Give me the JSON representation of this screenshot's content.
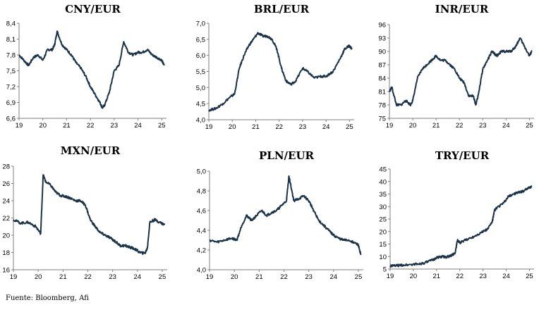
{
  "source": "Fuente: Bloomberg, Afi",
  "colors": {
    "line": "#1a3348",
    "axis": "#7f7f7f"
  },
  "x_ticks": [
    "19",
    "20",
    "21",
    "22",
    "23",
    "24",
    "25"
  ],
  "chart_data": [
    {
      "type": "line",
      "title": "CNY/EUR",
      "ylim": [
        6.6,
        8.4
      ],
      "yticks": [
        "6,6",
        "6,9",
        "7,2",
        "7,5",
        "7,8",
        "8,1",
        "8,4"
      ],
      "x": [
        19.0,
        19.2,
        19.4,
        19.6,
        19.8,
        20.0,
        20.2,
        20.4,
        20.5,
        20.6,
        20.8,
        21.0,
        21.2,
        21.4,
        21.6,
        21.8,
        22.0,
        22.2,
        22.4,
        22.5,
        22.6,
        22.8,
        23.0,
        23.2,
        23.4,
        23.6,
        23.8,
        24.0,
        24.2,
        24.4,
        24.6,
        24.8,
        25.0,
        25.1
      ],
      "values": [
        7.8,
        7.7,
        7.6,
        7.75,
        7.8,
        7.7,
        7.9,
        7.9,
        8.0,
        8.25,
        8.0,
        7.9,
        7.8,
        7.65,
        7.55,
        7.4,
        7.2,
        7.05,
        6.9,
        6.8,
        6.85,
        7.1,
        7.5,
        7.6,
        8.05,
        7.85,
        7.8,
        7.85,
        7.85,
        7.9,
        7.8,
        7.75,
        7.7,
        7.6
      ]
    },
    {
      "type": "line",
      "title": "BRL/EUR",
      "ylim": [
        4.0,
        7.0
      ],
      "yticks": [
        "4,0",
        "4,5",
        "5,0",
        "5,5",
        "6,0",
        "6,5",
        "7,0"
      ],
      "x": [
        19.0,
        19.3,
        19.6,
        19.9,
        20.1,
        20.3,
        20.5,
        20.7,
        20.9,
        21.1,
        21.3,
        21.5,
        21.7,
        21.9,
        22.1,
        22.3,
        22.5,
        22.7,
        23.0,
        23.2,
        23.5,
        23.8,
        24.0,
        24.3,
        24.6,
        24.8,
        25.0,
        25.1
      ],
      "values": [
        4.3,
        4.35,
        4.5,
        4.7,
        4.8,
        5.6,
        6.0,
        6.3,
        6.5,
        6.7,
        6.6,
        6.6,
        6.5,
        6.2,
        5.6,
        5.2,
        5.1,
        5.2,
        5.6,
        5.5,
        5.3,
        5.35,
        5.35,
        5.5,
        5.9,
        6.2,
        6.3,
        6.2
      ]
    },
    {
      "type": "line",
      "title": "INR/EUR",
      "ylim": [
        75,
        96
      ],
      "yticks": [
        "75",
        "78",
        "81",
        "84",
        "87",
        "90",
        "93",
        "96"
      ],
      "x": [
        19.0,
        19.1,
        19.3,
        19.5,
        19.7,
        19.9,
        20.0,
        20.2,
        20.4,
        20.6,
        20.8,
        21.0,
        21.2,
        21.4,
        21.6,
        21.8,
        22.0,
        22.2,
        22.4,
        22.6,
        22.7,
        22.8,
        23.0,
        23.2,
        23.4,
        23.6,
        23.8,
        24.0,
        24.2,
        24.4,
        24.6,
        24.8,
        25.0,
        25.1
      ],
      "values": [
        81,
        82,
        78,
        78,
        79,
        78,
        79,
        84,
        86,
        87,
        88,
        89,
        88,
        88,
        87,
        86,
        84,
        83,
        80,
        80,
        78,
        80,
        86,
        88,
        90,
        89,
        90,
        90,
        90,
        91,
        93,
        91,
        89,
        90
      ]
    },
    {
      "type": "line",
      "title": "MXN/EUR",
      "ylim": [
        16,
        28
      ],
      "yticks": [
        "16",
        "18",
        "20",
        "22",
        "24",
        "26",
        "28"
      ],
      "x": [
        19.0,
        19.3,
        19.6,
        19.9,
        20.1,
        20.2,
        20.3,
        20.5,
        20.7,
        20.9,
        21.1,
        21.3,
        21.5,
        21.7,
        21.9,
        22.1,
        22.3,
        22.5,
        22.7,
        22.9,
        23.1,
        23.3,
        23.5,
        23.7,
        23.9,
        24.1,
        24.3,
        24.4,
        24.5,
        24.7,
        24.9,
        25.1
      ],
      "values": [
        21.8,
        21.4,
        21.5,
        21.0,
        20.2,
        27.0,
        26.2,
        25.8,
        25.0,
        24.6,
        24.5,
        24.3,
        24.0,
        24.0,
        23.5,
        21.8,
        21.0,
        20.3,
        20.0,
        19.7,
        19.3,
        18.8,
        18.8,
        18.6,
        18.4,
        18.0,
        17.9,
        18.5,
        21.5,
        21.8,
        21.5,
        21.2
      ]
    },
    {
      "type": "line",
      "title": "PLN/EUR",
      "ylim": [
        4.0,
        5.0
      ],
      "yticks": [
        "4,0",
        "4,2",
        "4,4",
        "4,6",
        "4,8",
        "5,0"
      ],
      "x": [
        19.0,
        19.3,
        19.6,
        19.9,
        20.1,
        20.3,
        20.5,
        20.7,
        20.9,
        21.1,
        21.3,
        21.5,
        21.7,
        21.9,
        22.1,
        22.2,
        22.4,
        22.6,
        22.8,
        23.0,
        23.2,
        23.4,
        23.6,
        23.8,
        24.0,
        24.2,
        24.4,
        24.6,
        24.8,
        25.0,
        25.1
      ],
      "values": [
        4.3,
        4.28,
        4.3,
        4.32,
        4.3,
        4.45,
        4.55,
        4.5,
        4.55,
        4.6,
        4.55,
        4.58,
        4.6,
        4.65,
        4.7,
        4.95,
        4.7,
        4.72,
        4.75,
        4.7,
        4.6,
        4.5,
        4.45,
        4.4,
        4.35,
        4.32,
        4.3,
        4.3,
        4.28,
        4.25,
        4.15
      ]
    },
    {
      "type": "line",
      "title": "TRY/EUR",
      "ylim": [
        5,
        45
      ],
      "yticks": [
        "5",
        "10",
        "15",
        "20",
        "25",
        "30",
        "35",
        "40",
        "45"
      ],
      "x": [
        19.0,
        19.3,
        19.6,
        19.9,
        20.2,
        20.5,
        20.8,
        21.0,
        21.2,
        21.4,
        21.6,
        21.8,
        21.9,
        22.0,
        22.3,
        22.6,
        22.9,
        23.2,
        23.4,
        23.5,
        23.6,
        23.9,
        24.1,
        24.3,
        24.5,
        24.7,
        24.9,
        25.1
      ],
      "values": [
        6.2,
        6.4,
        6.6,
        6.8,
        7.0,
        7.5,
        8.5,
        9.5,
        10.0,
        9.8,
        10.2,
        11.5,
        16.5,
        15.5,
        16.8,
        18.0,
        19.5,
        21.0,
        24.0,
        28.5,
        29.5,
        31.5,
        34.0,
        35.0,
        35.5,
        36.0,
        37.0,
        38.0
      ]
    }
  ]
}
